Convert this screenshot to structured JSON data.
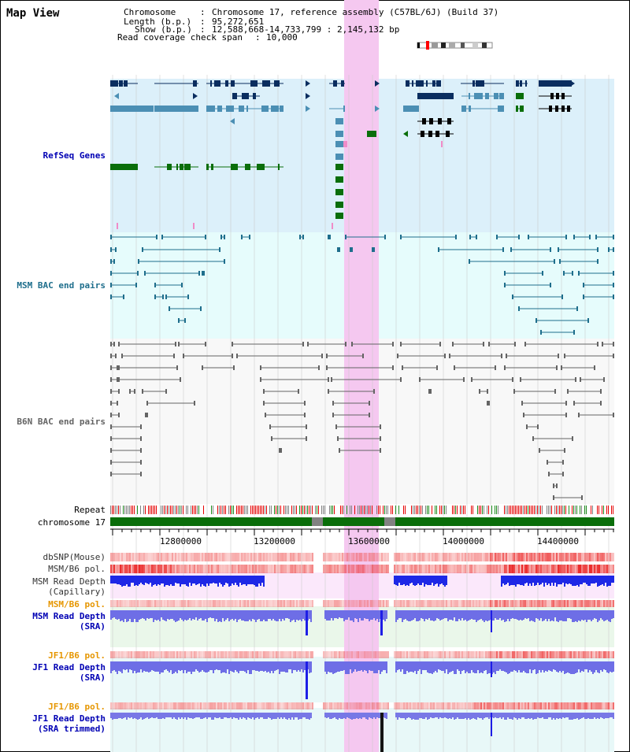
{
  "page_title": "Map View",
  "info": {
    "chromosome_key": "Chromosome",
    "chromosome_value": "Chromosome 17, reference assembly (C57BL/6J) (Build 37)",
    "length_key": "Length (b.p.)",
    "length_value": "95,272,651",
    "show_key": "Show (b.p.)",
    "show_value": "12,588,668-14,733,799 : 2,145,132 bp",
    "coverage_key": "Read coverage check span",
    "coverage_value": "10,000"
  },
  "tracks": {
    "refseq": "RefSeq Genes",
    "msm_bac": "MSM BAC end pairs",
    "b6n_bac": "B6N BAC end pairs",
    "repeat": "Repeat",
    "chromosome": "chromosome 17",
    "dbsnp": "dbSNP(Mouse)",
    "msm_b6_pol_1": "MSM/B6 pol.",
    "msm_depth_cap_1": "MSM Read Depth",
    "msm_depth_cap_2": "(Capillary)",
    "msm_b6_pol_2": "MSM/B6 pol.",
    "msm_depth_sra_1": "MSM Read Depth",
    "msm_depth_sra_2": "(SRA)",
    "jf1_b6_pol_1": "JF1/B6 pol.",
    "jf1_depth_sra_1": "JF1 Read Depth",
    "jf1_depth_sra_2": "(SRA)",
    "jf1_b6_pol_2": "JF1/B6 pol.",
    "jf1_depth_trim_1": "JF1 Read Depth",
    "jf1_depth_trim_2": "(SRA trimmed)"
  },
  "axis": {
    "ticks": [
      "12800000",
      "13200000",
      "13600000",
      "14000000",
      "14400000"
    ]
  },
  "colors": {
    "refseq_bg": "#dcf0fa",
    "msm_bg": "#e6fcfc",
    "b6n_bg": "#f8f8f8",
    "highlight": "#f5c8f0",
    "refseq_navy": "#0a2d5f",
    "refseq_steel": "#4b8fb4",
    "refseq_green": "#0a6e0a",
    "bac_teal": "#1e6e8c",
    "bac_gray": "#646464",
    "chromosome_green": "#0a6e0a",
    "label_blue": "#0000b4",
    "label_orange": "#e69600",
    "depth_blue": "#1e1ee6",
    "depth_light": "#6e6ee6"
  }
}
